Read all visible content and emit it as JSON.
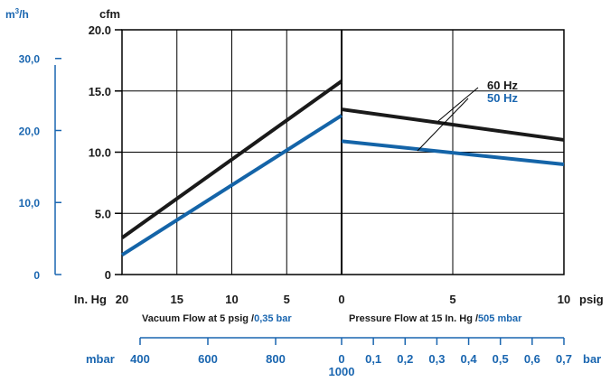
{
  "colors": {
    "black_series": "#1a1a1a",
    "blue_series": "#1464a8",
    "blue_text": "#1a66b0",
    "grid": "#000000"
  },
  "chart_data": {
    "type": "line",
    "grid": true,
    "y_axis": {
      "unit_label": "cfm",
      "range": [
        0,
        20
      ],
      "ticks": [
        "20.0",
        "15.0",
        "10.0",
        "5.0",
        "0"
      ]
    },
    "secondary_y_axis": {
      "unit_label_base": "m",
      "unit_label_sup": "3",
      "unit_label_tail": "/h",
      "ticks": [
        "30,0",
        "20,0",
        "10,0",
        "0"
      ]
    },
    "vacuum_axis": {
      "unit": "In. Hg",
      "ticks": [
        "20",
        "15",
        "10",
        "5",
        "0"
      ],
      "label_main": "Vacuum Flow at 5 psig /",
      "label_metric": "0,35 bar",
      "mbar_unit": "mbar",
      "mbar_ticks": [
        "400",
        "600",
        "800",
        "1000"
      ]
    },
    "pressure_axis": {
      "unit": "psig",
      "ticks": [
        "0",
        "5",
        "10"
      ],
      "label_main": "Pressure Flow at 15 In. Hg /",
      "label_metric": "505 mbar",
      "bar_unit": "bar",
      "bar_ticks": [
        "0",
        "0,1",
        "0,2",
        "0,3",
        "0,4",
        "0,5",
        "0,6",
        "0,7"
      ]
    },
    "series": [
      {
        "name": "60 Hz",
        "vacuum": [
          [
            20,
            3.0
          ],
          [
            0,
            15.8
          ]
        ],
        "pressure": [
          [
            0,
            13.5
          ],
          [
            10,
            11.0
          ]
        ]
      },
      {
        "name": "50 Hz",
        "vacuum": [
          [
            20,
            1.6
          ],
          [
            0,
            13.0
          ]
        ],
        "pressure": [
          [
            0,
            10.9
          ],
          [
            10,
            9.0
          ]
        ]
      }
    ]
  }
}
